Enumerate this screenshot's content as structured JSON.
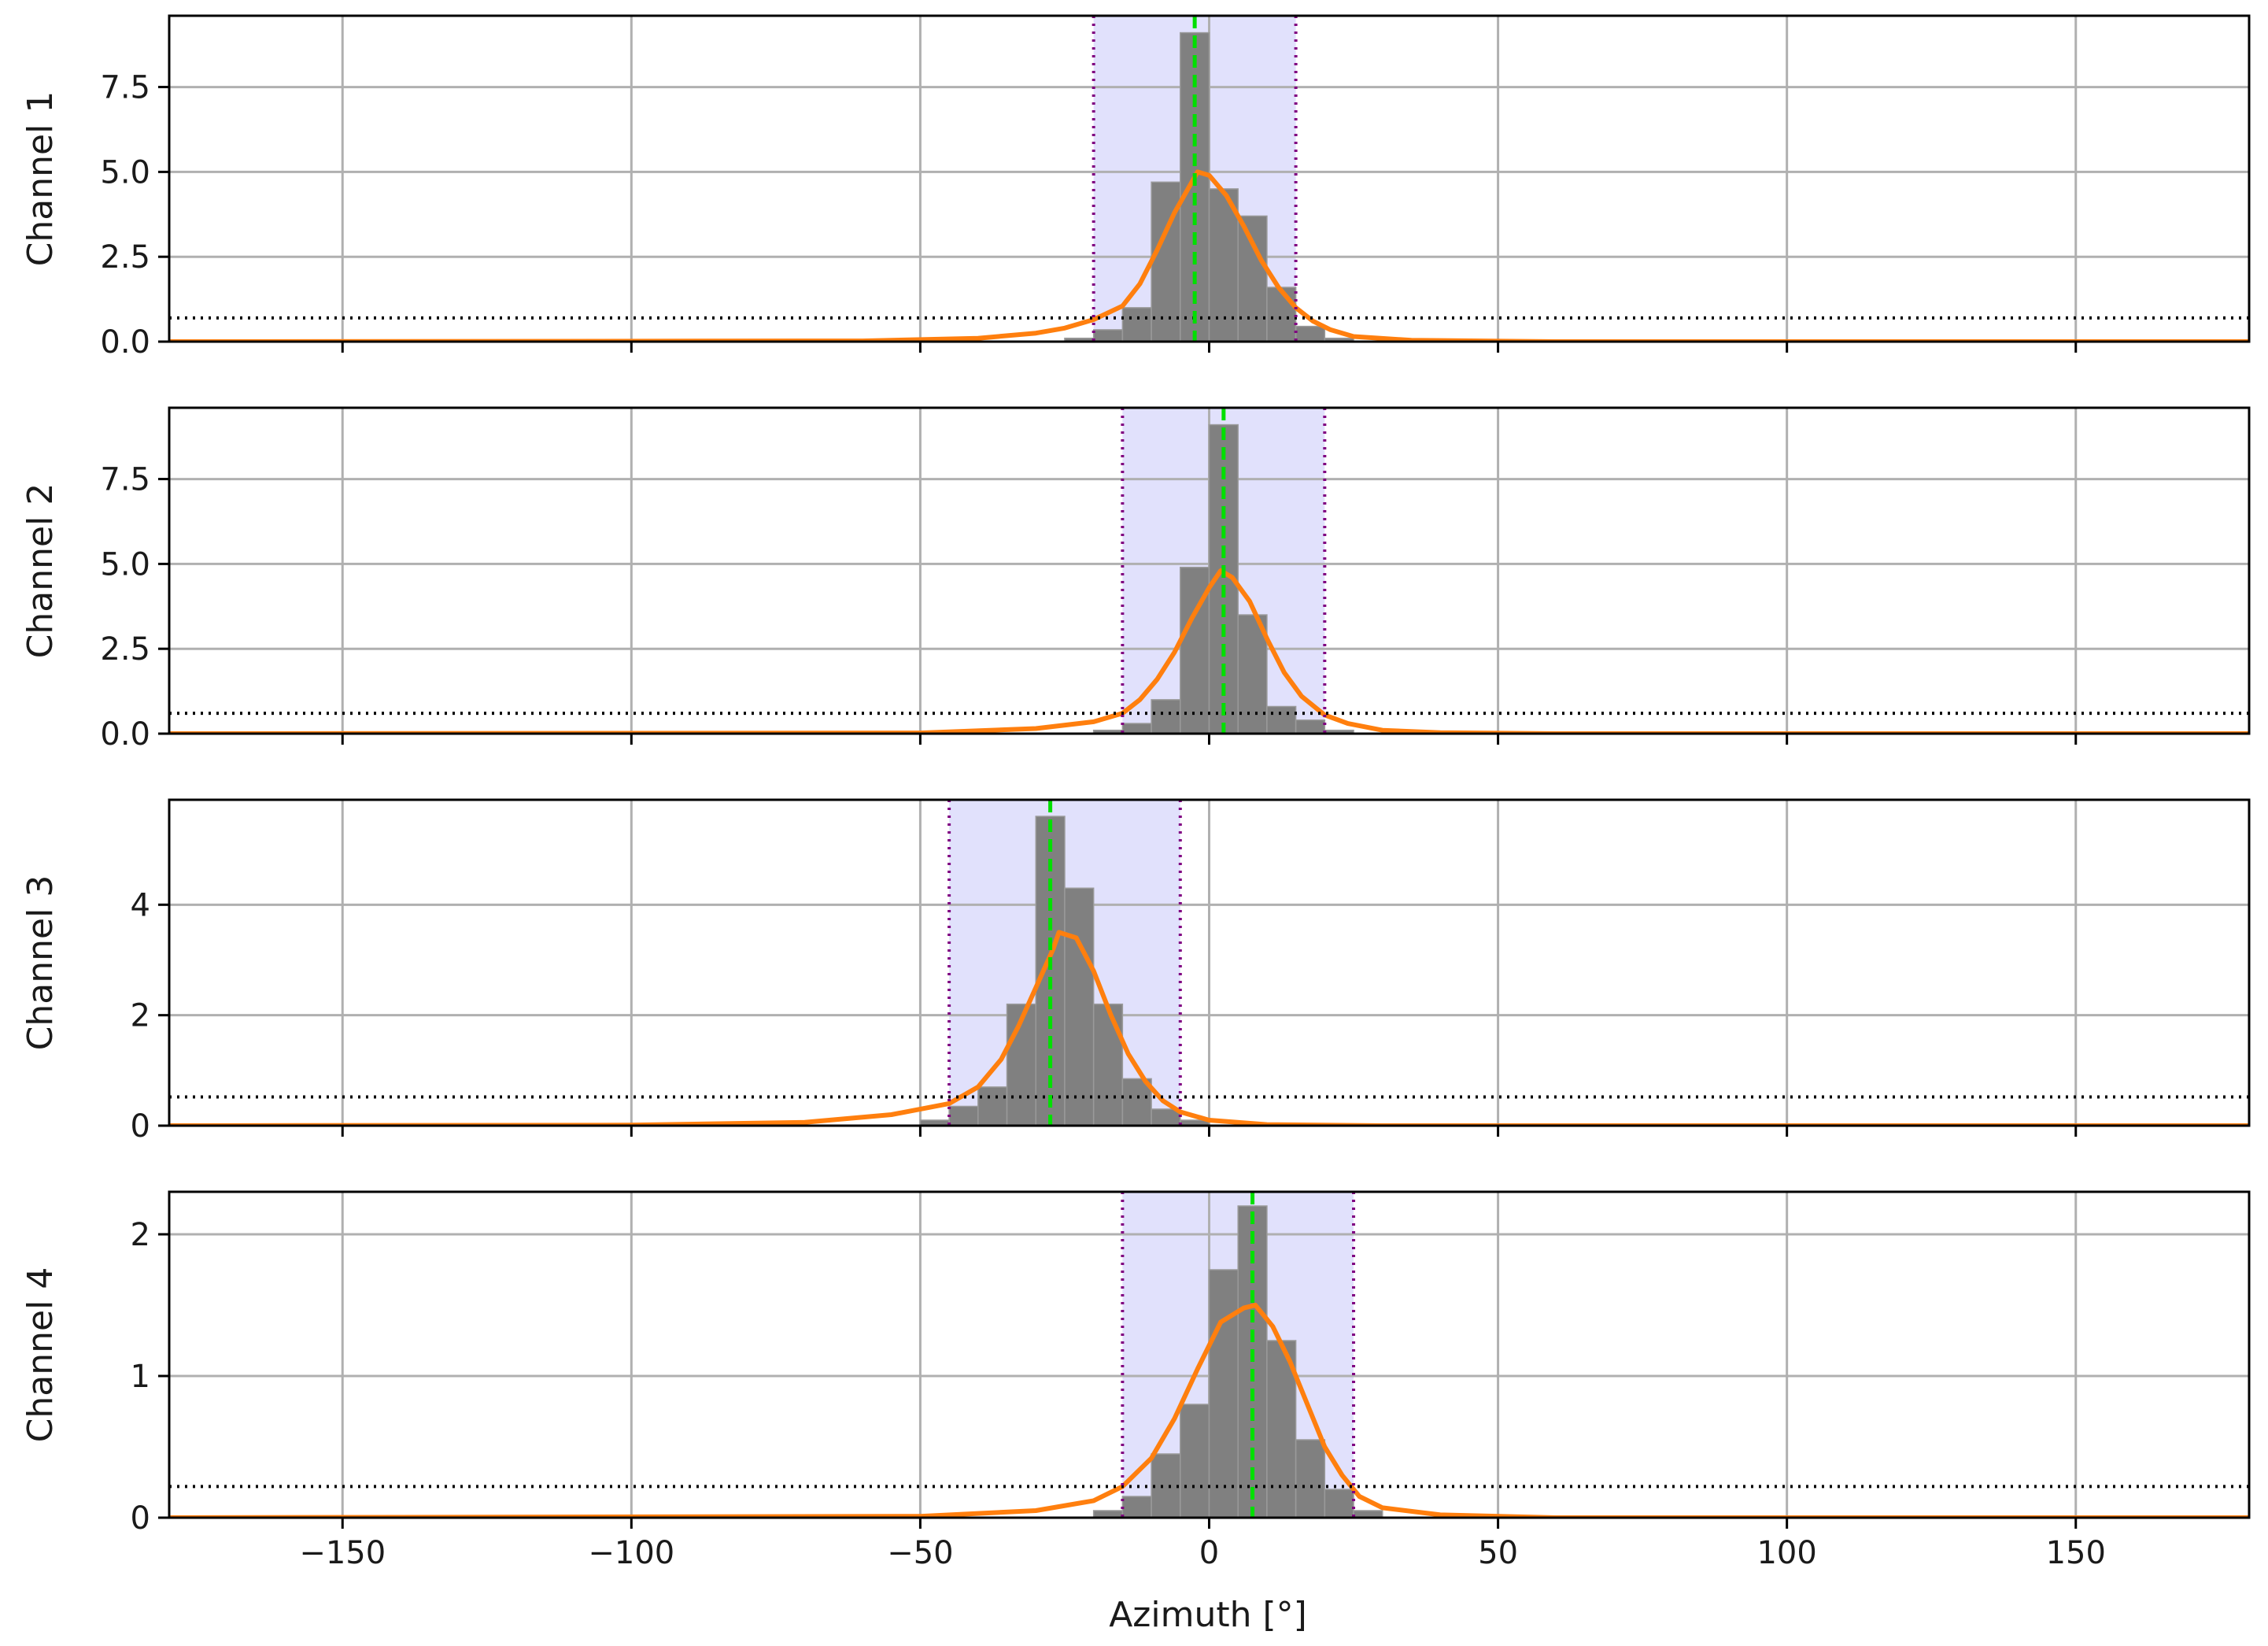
{
  "chart_data": {
    "type": "bar",
    "xlabel": "Azimuth [°]",
    "xlim": [
      -180,
      180
    ],
    "xticks": [
      -150,
      -100,
      -50,
      0,
      50,
      100,
      150
    ],
    "grid": true,
    "colors": {
      "histogram": "#808080",
      "histogram_edge": "#9a9a9a",
      "kde_curve": "#ff7f0e",
      "peak_line": "#00e000",
      "bounds_line": "#800080",
      "threshold_line": "#000000",
      "band_fill": "#dcdcfc",
      "grid": "#b0b0b0"
    },
    "panels": [
      {
        "ylabel": "Channel 1",
        "ylim": [
          0,
          9.6
        ],
        "yticks": [
          0.0,
          2.5,
          5.0,
          7.5
        ],
        "ytick_labels": [
          "0.0",
          "2.5",
          "5.0",
          "7.5"
        ],
        "bin_width": 5,
        "bins": [
          [
            -25,
            0.1
          ],
          [
            -20,
            0.35
          ],
          [
            -15,
            1.0
          ],
          [
            -10,
            4.7
          ],
          [
            -5,
            9.1
          ],
          [
            0,
            4.5
          ],
          [
            5,
            3.7
          ],
          [
            10,
            1.6
          ],
          [
            15,
            0.45
          ],
          [
            20,
            0.1
          ]
        ],
        "kde": [
          [
            -180,
            0.0
          ],
          [
            -60,
            0.02
          ],
          [
            -40,
            0.1
          ],
          [
            -30,
            0.25
          ],
          [
            -25,
            0.4
          ],
          [
            -20,
            0.65
          ],
          [
            -15,
            1.05
          ],
          [
            -12,
            1.7
          ],
          [
            -9,
            2.7
          ],
          [
            -6,
            3.8
          ],
          [
            -3,
            4.7
          ],
          [
            -2,
            5.0
          ],
          [
            0,
            4.9
          ],
          [
            3,
            4.3
          ],
          [
            6,
            3.4
          ],
          [
            9,
            2.4
          ],
          [
            12,
            1.6
          ],
          [
            15,
            1.0
          ],
          [
            18,
            0.6
          ],
          [
            21,
            0.35
          ],
          [
            25,
            0.15
          ],
          [
            35,
            0.04
          ],
          [
            60,
            0.0
          ],
          [
            180,
            0.0
          ]
        ],
        "peak": -2.5,
        "bounds": [
          -20,
          15
        ],
        "threshold": 0.7
      },
      {
        "ylabel": "Channel 2",
        "ylim": [
          0,
          9.6
        ],
        "yticks": [
          0.0,
          2.5,
          5.0,
          7.5
        ],
        "ytick_labels": [
          "0.0",
          "2.5",
          "5.0",
          "7.5"
        ],
        "bin_width": 5,
        "bins": [
          [
            -20,
            0.1
          ],
          [
            -15,
            0.3
          ],
          [
            -10,
            1.0
          ],
          [
            -5,
            4.9
          ],
          [
            0,
            9.1
          ],
          [
            5,
            3.5
          ],
          [
            10,
            0.8
          ],
          [
            15,
            0.4
          ],
          [
            20,
            0.1
          ]
        ],
        "kde": [
          [
            -180,
            0.0
          ],
          [
            -50,
            0.02
          ],
          [
            -30,
            0.15
          ],
          [
            -20,
            0.35
          ],
          [
            -15,
            0.6
          ],
          [
            -12,
            1.0
          ],
          [
            -9,
            1.6
          ],
          [
            -6,
            2.4
          ],
          [
            -3,
            3.4
          ],
          [
            0,
            4.3
          ],
          [
            2,
            4.8
          ],
          [
            4,
            4.6
          ],
          [
            7,
            3.9
          ],
          [
            10,
            2.8
          ],
          [
            13,
            1.8
          ],
          [
            16,
            1.1
          ],
          [
            20,
            0.55
          ],
          [
            24,
            0.3
          ],
          [
            30,
            0.1
          ],
          [
            40,
            0.03
          ],
          [
            60,
            0.0
          ],
          [
            180,
            0.0
          ]
        ],
        "peak": 2.5,
        "bounds": [
          -15,
          20
        ],
        "threshold": 0.6
      },
      {
        "ylabel": "Channel 3",
        "ylim": [
          0,
          5.9
        ],
        "yticks": [
          0,
          2,
          4
        ],
        "ytick_labels": [
          "0",
          "2",
          "4"
        ],
        "bin_width": 5,
        "bins": [
          [
            -50,
            0.1
          ],
          [
            -45,
            0.35
          ],
          [
            -40,
            0.7
          ],
          [
            -35,
            2.2
          ],
          [
            -30,
            5.6
          ],
          [
            -25,
            4.3
          ],
          [
            -20,
            2.2
          ],
          [
            -15,
            0.85
          ],
          [
            -10,
            0.3
          ],
          [
            -5,
            0.1
          ]
        ],
        "kde": [
          [
            -180,
            0.0
          ],
          [
            -100,
            0.01
          ],
          [
            -70,
            0.06
          ],
          [
            -55,
            0.2
          ],
          [
            -45,
            0.4
          ],
          [
            -40,
            0.7
          ],
          [
            -36,
            1.2
          ],
          [
            -33,
            1.8
          ],
          [
            -30,
            2.5
          ],
          [
            -27,
            3.2
          ],
          [
            -26,
            3.5
          ],
          [
            -23,
            3.4
          ],
          [
            -20,
            2.8
          ],
          [
            -17,
            2.0
          ],
          [
            -14,
            1.3
          ],
          [
            -11,
            0.8
          ],
          [
            -8,
            0.45
          ],
          [
            -5,
            0.25
          ],
          [
            0,
            0.1
          ],
          [
            10,
            0.02
          ],
          [
            30,
            0.0
          ],
          [
            180,
            0.0
          ]
        ],
        "peak": -27.5,
        "bounds": [
          -45,
          -5
        ],
        "threshold": 0.52
      },
      {
        "ylabel": "Channel 4",
        "ylim": [
          0,
          2.3
        ],
        "yticks": [
          0,
          1,
          2
        ],
        "ytick_labels": [
          "0",
          "1",
          "2"
        ],
        "bin_width": 5,
        "bins": [
          [
            -20,
            0.05
          ],
          [
            -15,
            0.15
          ],
          [
            -10,
            0.45
          ],
          [
            -5,
            0.8
          ],
          [
            0,
            1.75
          ],
          [
            5,
            2.2
          ],
          [
            10,
            1.25
          ],
          [
            15,
            0.55
          ],
          [
            20,
            0.2
          ],
          [
            25,
            0.05
          ]
        ],
        "kde": [
          [
            -180,
            0.0
          ],
          [
            -50,
            0.01
          ],
          [
            -30,
            0.05
          ],
          [
            -20,
            0.12
          ],
          [
            -15,
            0.22
          ],
          [
            -10,
            0.42
          ],
          [
            -6,
            0.7
          ],
          [
            -2,
            1.05
          ],
          [
            2,
            1.38
          ],
          [
            6,
            1.48
          ],
          [
            8,
            1.5
          ],
          [
            11,
            1.35
          ],
          [
            14,
            1.1
          ],
          [
            17,
            0.8
          ],
          [
            20,
            0.5
          ],
          [
            23,
            0.3
          ],
          [
            26,
            0.15
          ],
          [
            30,
            0.07
          ],
          [
            40,
            0.02
          ],
          [
            60,
            0.0
          ],
          [
            180,
            0.0
          ]
        ],
        "peak": 7.5,
        "bounds": [
          -15,
          25
        ],
        "threshold": 0.22
      }
    ]
  }
}
